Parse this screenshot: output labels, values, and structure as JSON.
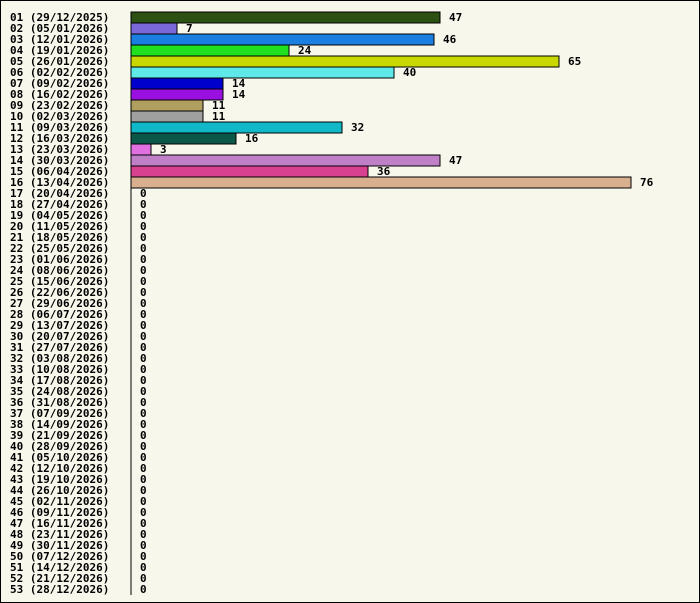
{
  "chart_data": {
    "type": "bar",
    "orientation": "horizontal",
    "categories": [
      "01 (29/12/2025)",
      "02 (05/01/2026)",
      "03 (12/01/2026)",
      "04 (19/01/2026)",
      "05 (26/01/2026)",
      "06 (02/02/2026)",
      "07 (09/02/2026)",
      "08 (16/02/2026)",
      "09 (23/02/2026)",
      "10 (02/03/2026)",
      "11 (09/03/2026)",
      "12 (16/03/2026)",
      "13 (23/03/2026)",
      "14 (30/03/2026)",
      "15 (06/04/2026)",
      "16 (13/04/2026)",
      "17 (20/04/2026)",
      "18 (27/04/2026)",
      "19 (04/05/2026)",
      "20 (11/05/2026)",
      "21 (18/05/2026)",
      "22 (25/05/2026)",
      "23 (01/06/2026)",
      "24 (08/06/2026)",
      "25 (15/06/2026)",
      "26 (22/06/2026)",
      "27 (29/06/2026)",
      "28 (06/07/2026)",
      "29 (13/07/2026)",
      "30 (20/07/2026)",
      "31 (27/07/2026)",
      "32 (03/08/2026)",
      "33 (10/08/2026)",
      "34 (17/08/2026)",
      "35 (24/08/2026)",
      "36 (31/08/2026)",
      "37 (07/09/2026)",
      "38 (14/09/2026)",
      "39 (21/09/2026)",
      "40 (28/09/2026)",
      "41 (05/10/2026)",
      "42 (12/10/2026)",
      "43 (19/10/2026)",
      "44 (26/10/2026)",
      "45 (02/11/2026)",
      "46 (09/11/2026)",
      "47 (16/11/2026)",
      "48 (23/11/2026)",
      "49 (30/11/2026)",
      "50 (07/12/2026)",
      "51 (14/12/2026)",
      "52 (21/12/2026)",
      "53 (28/12/2026)"
    ],
    "values": [
      47,
      7,
      46,
      24,
      65,
      40,
      14,
      14,
      11,
      11,
      32,
      16,
      3,
      47,
      36,
      76,
      0,
      0,
      0,
      0,
      0,
      0,
      0,
      0,
      0,
      0,
      0,
      0,
      0,
      0,
      0,
      0,
      0,
      0,
      0,
      0,
      0,
      0,
      0,
      0,
      0,
      0,
      0,
      0,
      0,
      0,
      0,
      0,
      0,
      0,
      0,
      0,
      0
    ],
    "colors": [
      "#2d5013",
      "#7b68d8",
      "#1a7fe0",
      "#20e020",
      "#c8d800",
      "#5fe8e8",
      "#0000cc",
      "#9a10e0",
      "#b0a060",
      "#a0a0a0",
      "#10b8c8",
      "#0c5848",
      "#e070e0",
      "#c080c8",
      "#d84090",
      "#d8b090"
    ],
    "xlim": [
      0,
      76
    ],
    "grid": false,
    "legend": "none",
    "title": "",
    "xlabel": "",
    "ylabel": ""
  }
}
